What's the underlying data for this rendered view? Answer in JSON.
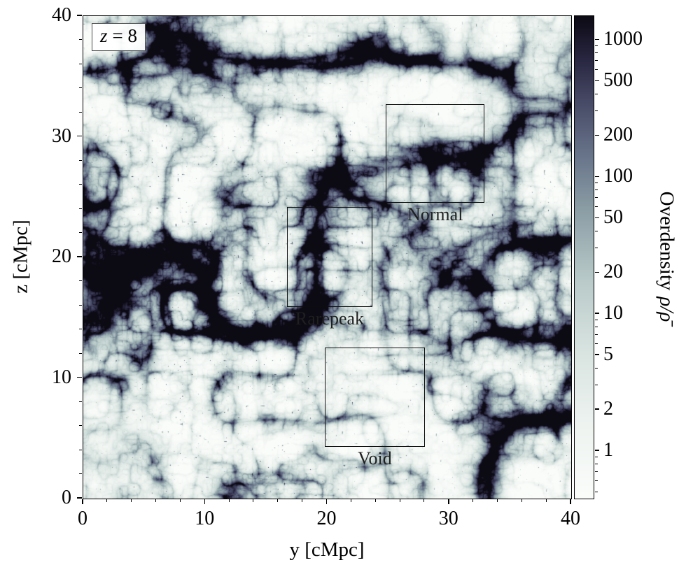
{
  "chart_data": {
    "type": "heatmap",
    "title": "",
    "annotation": {
      "variable": "z",
      "value": "= 8"
    },
    "xlabel": "y [cMpc]",
    "ylabel": "z [cMpc]",
    "xlim": [
      0,
      40
    ],
    "ylim": [
      0,
      40
    ],
    "xticks": [
      0,
      10,
      20,
      30,
      40
    ],
    "yticks": [
      0,
      10,
      20,
      30,
      40
    ],
    "minor_tick_step": 2,
    "grid": false,
    "colorbar": {
      "label_prefix": "Overdensity",
      "label_symbol": "ρ/ρ̄",
      "scale": "log",
      "vmin": 0.45,
      "vmax": 1500,
      "ticks": [
        1000,
        500,
        200,
        100,
        50,
        20,
        10,
        5,
        2,
        1
      ],
      "position": "right"
    },
    "colormap": [
      {
        "t": 0.0,
        "color": "#fafcfa"
      },
      {
        "t": 0.15,
        "color": "#eef3f0"
      },
      {
        "t": 0.3,
        "color": "#d9e4e1"
      },
      {
        "t": 0.45,
        "color": "#b9cac9"
      },
      {
        "t": 0.6,
        "color": "#8a9ca4"
      },
      {
        "t": 0.71,
        "color": "#68748a"
      },
      {
        "t": 0.82,
        "color": "#474a66"
      },
      {
        "t": 0.91,
        "color": "#282640"
      },
      {
        "t": 1.0,
        "color": "#0c0a13"
      }
    ],
    "regions": [
      {
        "label": "Normal",
        "y": [
          24.8,
          32.9
        ],
        "z": [
          24.5,
          32.7
        ]
      },
      {
        "label": "Rarepeak",
        "y": [
          16.7,
          23.7
        ],
        "z": [
          15.9,
          24.2
        ]
      },
      {
        "label": "Void",
        "y": [
          19.8,
          28.0
        ],
        "z": [
          4.3,
          12.5
        ]
      }
    ],
    "field": {
      "content": "filamentary cosmic-web overdensity slice, light voids with dark dense filaments and clusters",
      "base_scale": 5.3
    }
  }
}
